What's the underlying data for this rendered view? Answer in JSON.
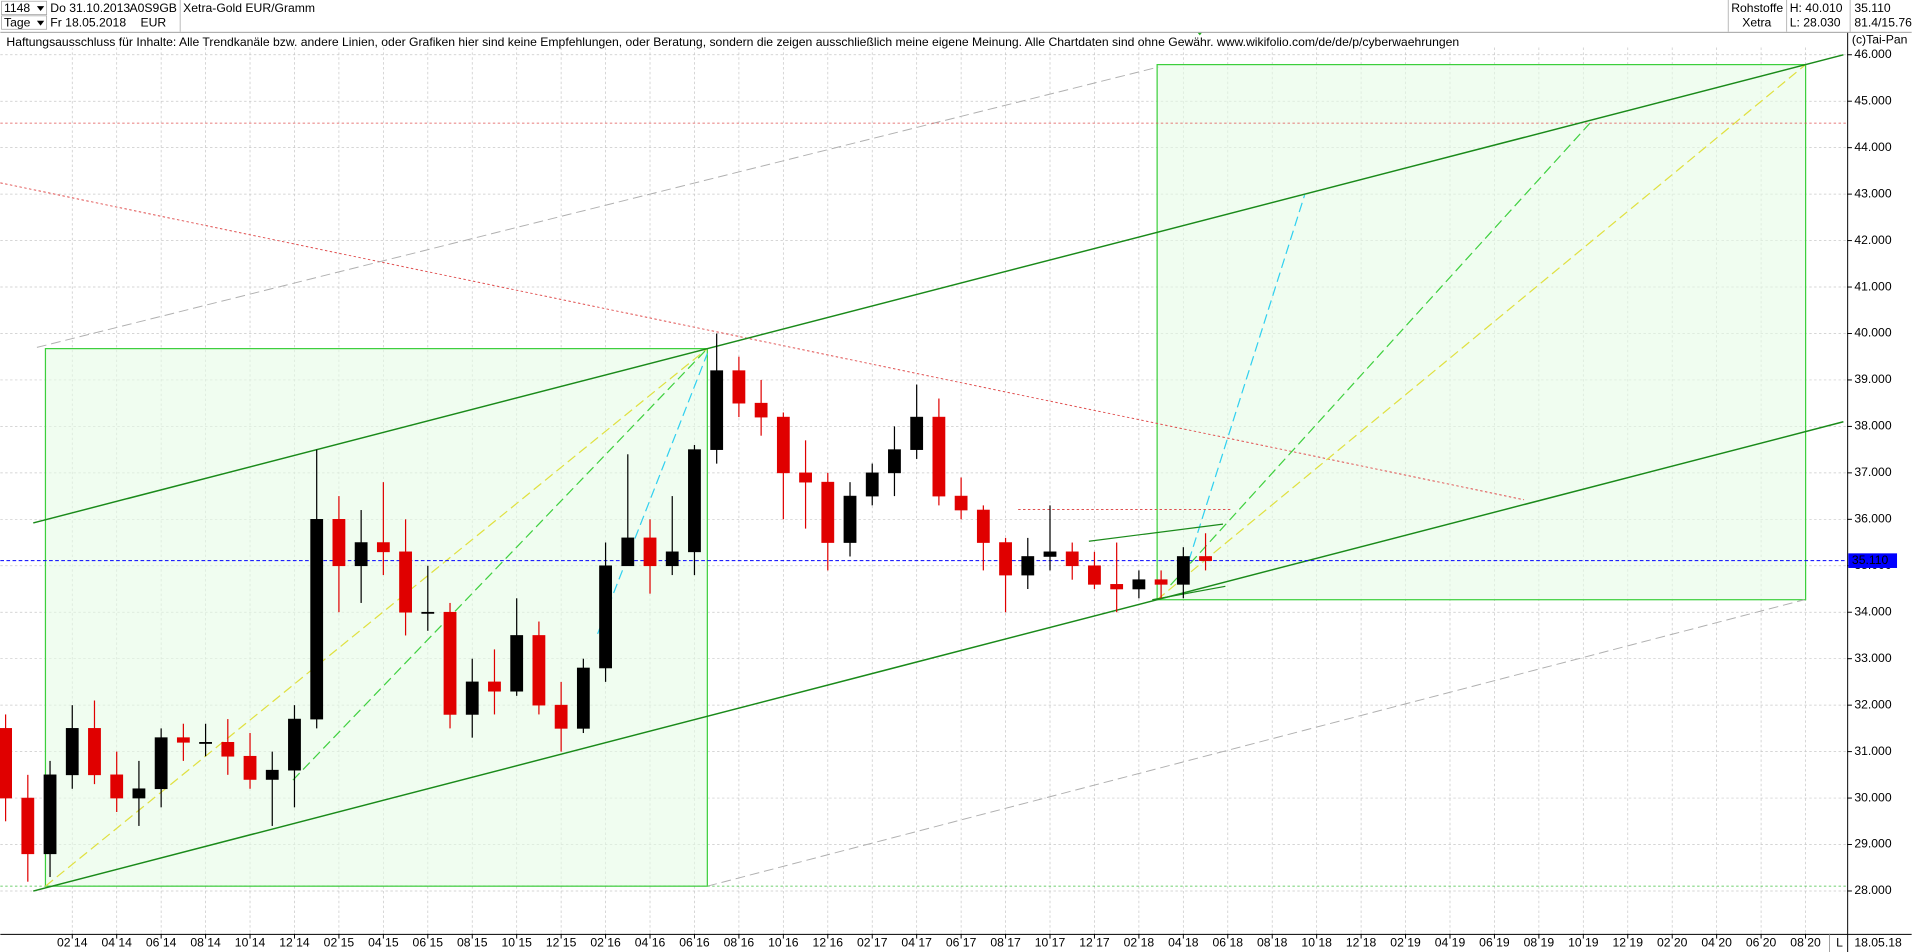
{
  "header": {
    "symbol": "1148",
    "period": "Tage",
    "start": "Do 31.10.2013",
    "end": "Fr 18.05.2018",
    "isin": "A0S9GB",
    "currency": "EUR",
    "name": "Xetra-Gold EUR/Gramm",
    "group": "Rohstoffe",
    "exchange": "Xetra",
    "high": "H: 40.010",
    "low": "L: 28.030",
    "ratio": "81.4/15.76",
    "copyright": "(c)Tai-Pan",
    "date_label": "18.05.18",
    "scale_mode": "L"
  },
  "disclaimer": "Haftungsausschluss für Inhalte: Alle Trendkanäle bzw. andere Linien, oder Grafiken hier sind keine Empfehlungen, oder Beratung, sondern die zeigen ausschließlich meine eigene Meinung. Alle Chartdaten sind ohne Gewähr.  www.wikifolio.com/de/de/p/cyberwaehrungen",
  "chart_data": {
    "type": "candlestick",
    "up_color": "#000000",
    "down_color": "#e00000",
    "grid": true,
    "categories": [
      null,
      null,
      null,
      "02 14",
      null,
      "04 14",
      null,
      "06 14",
      null,
      "08 14",
      null,
      "10 14",
      null,
      "12 14",
      null,
      "02 15",
      null,
      "04 15",
      null,
      "06 15",
      null,
      "08 15",
      null,
      "10 15",
      null,
      "12 15",
      null,
      "02 16",
      null,
      "04 16",
      null,
      "06 16",
      null,
      "08 16",
      null,
      "10 16",
      null,
      "12 16",
      null,
      "02 17",
      null,
      "04 17",
      null,
      "06 17",
      null,
      "08 17",
      null,
      "10 17",
      null,
      "12 17",
      null,
      "02 18",
      null,
      "04 18",
      null,
      "06 18",
      null,
      "08 18",
      null,
      "10 18",
      null,
      "12 18",
      null,
      "02 19",
      null,
      "04 19",
      null,
      "06 19",
      null,
      "08 19",
      null,
      "10 19",
      null,
      "12 19",
      null,
      "02 20",
      null,
      "04 20",
      null,
      "06 20",
      null,
      "08 20",
      null
    ],
    "open": [
      31.5,
      30.0,
      28.8,
      30.5,
      31.5,
      30.5,
      30.0,
      30.2,
      31.3,
      31.2,
      31.2,
      30.9,
      30.4,
      30.6,
      31.7,
      36.0,
      35.0,
      35.5,
      35.3,
      34.0,
      34.0,
      31.8,
      32.5,
      32.3,
      33.5,
      32.0,
      31.5,
      32.8,
      35.0,
      35.6,
      35.0,
      35.3,
      37.5,
      39.2,
      38.5,
      38.2,
      37.0,
      36.8,
      35.5,
      36.5,
      37.0,
      37.5,
      38.2,
      36.5,
      36.2,
      35.5,
      34.8,
      35.2,
      35.3,
      35.0,
      34.6,
      34.5,
      34.7,
      34.6,
      35.2,
      null,
      null,
      null,
      null,
      null,
      null,
      null,
      null,
      null,
      null,
      null,
      null,
      null,
      null,
      null,
      null,
      null,
      null,
      null,
      null,
      null,
      null,
      null,
      null,
      null,
      null,
      null,
      null
    ],
    "high": [
      31.8,
      30.5,
      30.8,
      32.0,
      32.1,
      31.0,
      30.8,
      31.5,
      31.6,
      31.6,
      31.7,
      31.4,
      31.0,
      32.0,
      37.5,
      36.5,
      36.2,
      36.8,
      36.0,
      35.0,
      34.2,
      33.0,
      33.2,
      34.3,
      33.8,
      32.5,
      33.0,
      35.5,
      37.4,
      36.0,
      36.5,
      37.6,
      40.0,
      39.5,
      39.0,
      38.3,
      37.7,
      37.0,
      36.8,
      37.2,
      38.0,
      38.9,
      38.6,
      36.9,
      36.3,
      35.6,
      35.6,
      36.3,
      35.5,
      35.3,
      35.5,
      34.9,
      34.9,
      35.4,
      35.7,
      null,
      null,
      null,
      null,
      null,
      null,
      null,
      null,
      null,
      null,
      null,
      null,
      null,
      null,
      null,
      null,
      null,
      null,
      null,
      null,
      null,
      null,
      null,
      null,
      null,
      null,
      null,
      null
    ],
    "low": [
      29.5,
      28.2,
      28.3,
      30.2,
      30.3,
      29.7,
      29.4,
      29.8,
      30.8,
      30.9,
      30.5,
      30.2,
      29.4,
      29.8,
      31.5,
      34.0,
      34.2,
      34.8,
      33.5,
      33.6,
      31.5,
      31.3,
      31.8,
      32.2,
      31.8,
      31.0,
      31.4,
      32.5,
      35.0,
      34.4,
      34.8,
      34.8,
      37.2,
      38.2,
      37.8,
      36.0,
      35.8,
      34.9,
      35.2,
      36.3,
      36.5,
      37.3,
      36.3,
      36.0,
      34.9,
      34.0,
      34.5,
      34.9,
      34.7,
      34.5,
      34.0,
      34.3,
      34.3,
      34.3,
      34.9,
      null,
      null,
      null,
      null,
      null,
      null,
      null,
      null,
      null,
      null,
      null,
      null,
      null,
      null,
      null,
      null,
      null,
      null,
      null,
      null,
      null,
      null,
      null,
      null,
      null,
      null,
      null,
      null
    ],
    "close": [
      30.0,
      28.8,
      30.5,
      31.5,
      30.5,
      30.0,
      30.2,
      31.3,
      31.2,
      31.2,
      30.9,
      30.4,
      30.6,
      31.7,
      36.0,
      35.0,
      35.5,
      35.3,
      34.0,
      34.0,
      31.8,
      32.5,
      32.3,
      33.5,
      32.0,
      31.5,
      32.8,
      35.0,
      35.6,
      35.0,
      35.3,
      37.5,
      39.2,
      38.5,
      38.2,
      37.0,
      36.8,
      35.5,
      36.5,
      37.0,
      37.5,
      38.2,
      36.5,
      36.2,
      35.5,
      34.8,
      35.2,
      35.3,
      35.0,
      34.6,
      34.5,
      34.7,
      34.6,
      35.2,
      35.11,
      null,
      null,
      null,
      null,
      null,
      null,
      null,
      null,
      null,
      null,
      null,
      null,
      null,
      null,
      null,
      null,
      null,
      null,
      null,
      null,
      null,
      null,
      null,
      null,
      null,
      null,
      null,
      null
    ],
    "ylim": [
      27.08,
      46.47
    ],
    "yticks": [
      {
        "value": 28,
        "label": "28.000"
      },
      {
        "value": 29,
        "label": "29.000"
      },
      {
        "value": 30,
        "label": "30.000"
      },
      {
        "value": 31,
        "label": "31.000"
      },
      {
        "value": 32,
        "label": "32.000"
      },
      {
        "value": 33,
        "label": "33.000"
      },
      {
        "value": 34,
        "label": "34.000"
      },
      {
        "value": 35,
        "label": "35.000"
      },
      {
        "value": 36,
        "label": "36.000"
      },
      {
        "value": 37,
        "label": "37.000"
      },
      {
        "value": 38,
        "label": "38.000"
      },
      {
        "value": 39,
        "label": "39.000"
      },
      {
        "value": 40,
        "label": "40.000"
      },
      {
        "value": 41,
        "label": "41.000"
      },
      {
        "value": 42,
        "label": "42.000"
      },
      {
        "value": 43,
        "label": "43.000"
      },
      {
        "value": 44,
        "label": "44.000"
      },
      {
        "value": 45,
        "label": "45.000"
      },
      {
        "value": 46,
        "label": "46.000"
      }
    ],
    "price_line": {
      "value": 35.11,
      "label": "35.110",
      "color": "#0000ff"
    }
  }
}
